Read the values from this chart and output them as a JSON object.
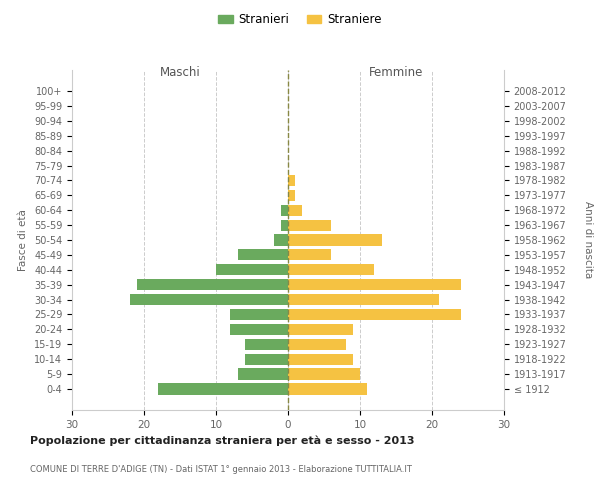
{
  "age_groups": [
    "100+",
    "95-99",
    "90-94",
    "85-89",
    "80-84",
    "75-79",
    "70-74",
    "65-69",
    "60-64",
    "55-59",
    "50-54",
    "45-49",
    "40-44",
    "35-39",
    "30-34",
    "25-29",
    "20-24",
    "15-19",
    "10-14",
    "5-9",
    "0-4"
  ],
  "birth_years": [
    "≤ 1912",
    "1913-1917",
    "1918-1922",
    "1923-1927",
    "1928-1932",
    "1933-1937",
    "1938-1942",
    "1943-1947",
    "1948-1952",
    "1953-1957",
    "1958-1962",
    "1963-1967",
    "1968-1972",
    "1973-1977",
    "1978-1982",
    "1983-1987",
    "1988-1992",
    "1993-1997",
    "1998-2002",
    "2003-2007",
    "2008-2012"
  ],
  "males": [
    0,
    0,
    0,
    0,
    0,
    0,
    0,
    0,
    1,
    1,
    2,
    7,
    10,
    21,
    22,
    8,
    8,
    6,
    6,
    7,
    18
  ],
  "females": [
    0,
    0,
    0,
    0,
    0,
    0,
    1,
    1,
    2,
    6,
    13,
    6,
    12,
    24,
    21,
    24,
    9,
    8,
    9,
    10,
    11
  ],
  "male_color": "#6aaa5e",
  "female_color": "#f5c242",
  "background_color": "#ffffff",
  "grid_color": "#cccccc",
  "title": "Popolazione per cittadinanza straniera per età e sesso - 2013",
  "subtitle": "COMUNE DI TERRE D'ADIGE (TN) - Dati ISTAT 1° gennaio 2013 - Elaborazione TUTTITALIA.IT",
  "left_label": "Maschi",
  "right_label": "Femmine",
  "ylabel_left": "Fasce di età",
  "ylabel_right": "Anni di nascita",
  "legend_male": "Stranieri",
  "legend_female": "Straniere",
  "xlim": 30
}
